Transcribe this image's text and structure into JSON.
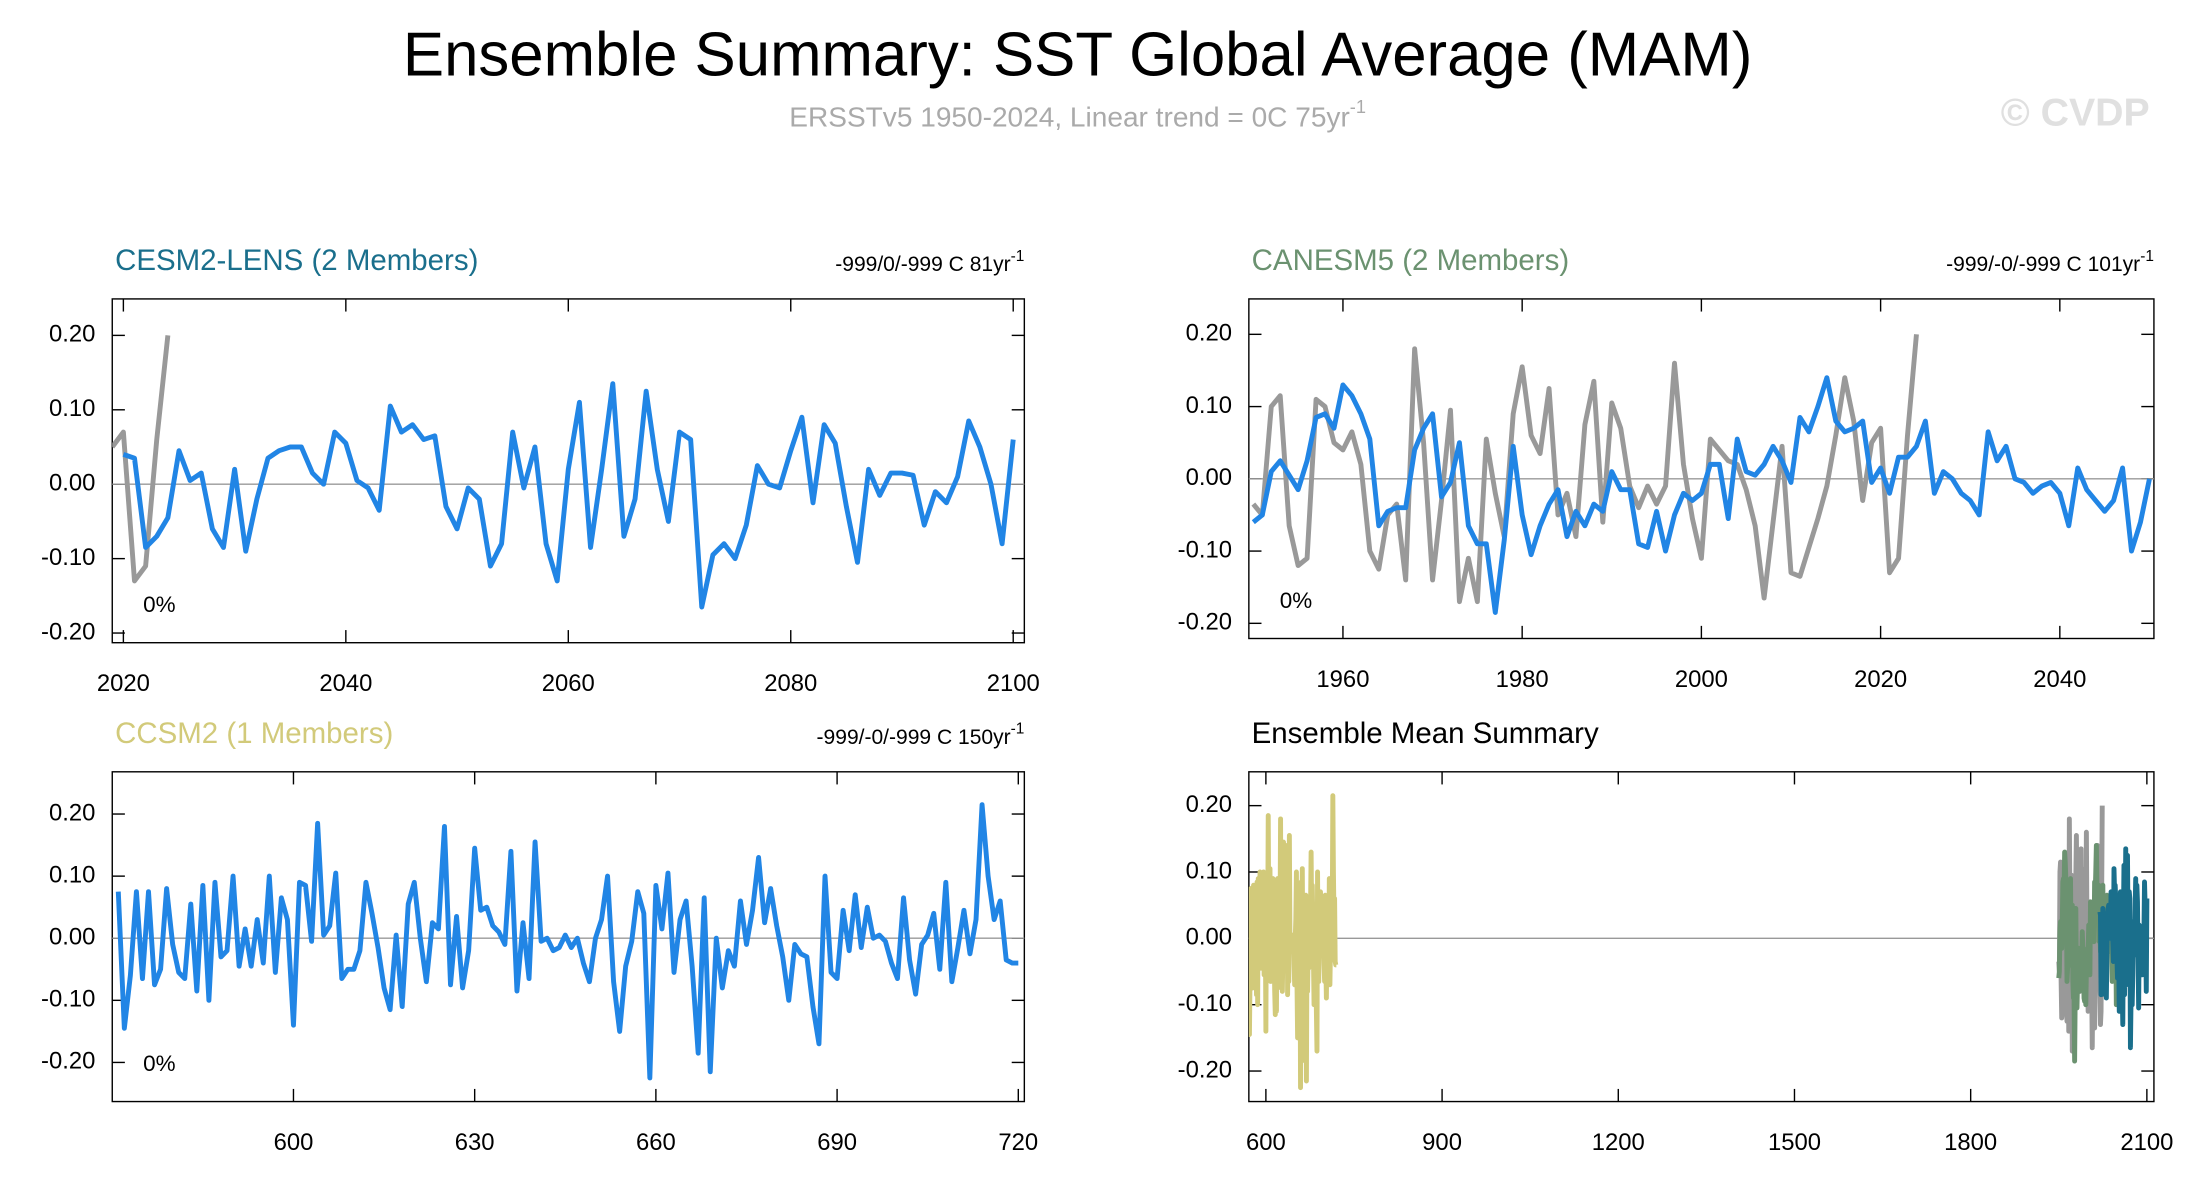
{
  "title": "Ensemble Summary: SST Global Average (MAM)",
  "subtitle": "ERSSTv5 1950-2024, Linear trend = 0C 75yr",
  "subtitle_sup": "-1",
  "watermark": "© CVDP",
  "chart_data": [
    {
      "type": "line",
      "title": "CESM2-LENS (2 Members)",
      "title_color": "#1a6f8c",
      "trend": "-999/0/-999 C 81yr",
      "trend_sup": "-1",
      "percent": "0%",
      "xlim": [
        2019,
        2101
      ],
      "xticks": [
        2020,
        2040,
        2060,
        2080,
        2100
      ],
      "ylim": [
        -0.213,
        0.249
      ],
      "yticks": [
        {
          "value": 0.2,
          "label": "0.20"
        },
        {
          "value": 0.1,
          "label": "0.10"
        },
        {
          "value": 0,
          "label": "0.00"
        },
        {
          "value": -0.1,
          "label": "-0.10"
        },
        {
          "value": -0.2,
          "label": "-0.20"
        }
      ],
      "series": [
        {
          "color": "#999999",
          "x": [
            2019,
            2020,
            2021,
            2022,
            2023,
            2024
          ],
          "values": [
            0.05,
            0.07,
            -0.13,
            -0.11,
            0.06,
            0.2
          ]
        },
        {
          "color": "#2185e5",
          "x": [
            2020,
            2021,
            2022,
            2023,
            2024,
            2025,
            2026,
            2027,
            2028,
            2029,
            2030,
            2031,
            2032,
            2033,
            2034,
            2035,
            2036,
            2037,
            2038,
            2039,
            2040,
            2041,
            2042,
            2043,
            2044,
            2045,
            2046,
            2047,
            2048,
            2049,
            2050,
            2051,
            2052,
            2053,
            2054,
            2055,
            2056,
            2057,
            2058,
            2059,
            2060,
            2061,
            2062,
            2063,
            2064,
            2065,
            2066,
            2067,
            2068,
            2069,
            2070,
            2071,
            2072,
            2073,
            2074,
            2075,
            2076,
            2077,
            2078,
            2079,
            2080,
            2081,
            2082,
            2083,
            2084,
            2085,
            2086,
            2087,
            2088,
            2089,
            2090,
            2091,
            2092,
            2093,
            2094,
            2095,
            2096,
            2097,
            2098,
            2099,
            2100
          ],
          "values": [
            0.04,
            0.035,
            -0.085,
            -0.07,
            -0.045,
            0.045,
            0.005,
            0.015,
            -0.06,
            -0.085,
            0.02,
            -0.09,
            -0.02,
            0.035,
            0.045,
            0.05,
            0.05,
            0.015,
            0.0,
            0.07,
            0.055,
            0.005,
            -0.005,
            -0.035,
            0.105,
            0.07,
            0.08,
            0.06,
            0.065,
            -0.03,
            -0.06,
            -0.005,
            -0.02,
            -0.11,
            -0.08,
            0.07,
            -0.005,
            0.05,
            -0.08,
            -0.13,
            0.02,
            0.11,
            -0.085,
            0.02,
            0.135,
            -0.07,
            -0.02,
            0.125,
            0.02,
            -0.05,
            0.07,
            0.06,
            -0.165,
            -0.095,
            -0.08,
            -0.1,
            -0.055,
            0.025,
            0.0,
            -0.005,
            0.045,
            0.09,
            -0.025,
            0.08,
            0.055,
            -0.03,
            -0.105,
            0.02,
            -0.015,
            0.015,
            0.015,
            0.012,
            -0.055,
            -0.01,
            -0.025,
            0.01,
            0.085,
            0.05,
            0.0,
            -0.08,
            0.06
          ]
        }
      ]
    },
    {
      "type": "line",
      "title": "CANESM5 (2 Members)",
      "title_color": "#6b9270",
      "trend": "-999/-0/-999 C 101yr",
      "trend_sup": "-1",
      "percent": "0%",
      "xlim": [
        1949.5,
        2050.5
      ],
      "xticks": [
        1960,
        1980,
        2000,
        2020,
        2040
      ],
      "ylim": [
        -0.221,
        0.249
      ],
      "yticks": [
        {
          "value": 0.2,
          "label": "0.20"
        },
        {
          "value": 0.1,
          "label": "0.10"
        },
        {
          "value": 0,
          "label": "0.00"
        },
        {
          "value": -0.1,
          "label": "-0.10"
        },
        {
          "value": -0.2,
          "label": "-0.20"
        }
      ],
      "series": [
        {
          "color": "#999999",
          "x": [
            1950,
            1951,
            1952,
            1953,
            1954,
            1955,
            1956,
            1957,
            1958,
            1959,
            1960,
            1961,
            1962,
            1963,
            1964,
            1965,
            1966,
            1967,
            1968,
            1969,
            1970,
            1971,
            1972,
            1973,
            1974,
            1975,
            1976,
            1977,
            1978,
            1979,
            1980,
            1981,
            1982,
            1983,
            1984,
            1985,
            1986,
            1987,
            1988,
            1989,
            1990,
            1991,
            1992,
            1993,
            1994,
            1995,
            1996,
            1997,
            1998,
            1999,
            2000,
            2001,
            2002,
            2003,
            2004,
            2005,
            2006,
            2007,
            2008,
            2009,
            2010,
            2011,
            2012,
            2013,
            2014,
            2015,
            2016,
            2017,
            2018,
            2019,
            2020,
            2021,
            2022,
            2023,
            2024
          ],
          "values": [
            -0.035,
            -0.05,
            0.1,
            0.115,
            -0.065,
            -0.12,
            -0.11,
            0.11,
            0.1,
            0.05,
            0.04,
            0.065,
            0.02,
            -0.1,
            -0.125,
            -0.05,
            -0.035,
            -0.14,
            0.18,
            0.05,
            -0.14,
            -0.03,
            0.095,
            -0.17,
            -0.11,
            -0.17,
            0.055,
            -0.02,
            -0.08,
            0.09,
            0.155,
            0.06,
            0.035,
            0.125,
            -0.05,
            -0.02,
            -0.08,
            0.075,
            0.135,
            -0.06,
            0.105,
            0.07,
            -0.01,
            -0.04,
            -0.01,
            -0.035,
            -0.01,
            0.16,
            0.02,
            -0.055,
            -0.11,
            0.055,
            0.04,
            0.025,
            0.02,
            -0.015,
            -0.065,
            -0.165,
            -0.06,
            0.045,
            -0.13,
            -0.135,
            -0.095,
            -0.055,
            -0.01,
            0.06,
            0.14,
            0.08,
            -0.03,
            0.05,
            0.07,
            -0.13,
            -0.11,
            0.06,
            0.2
          ]
        },
        {
          "color": "#2185e5",
          "x": [
            1950,
            1951,
            1952,
            1953,
            1954,
            1955,
            1956,
            1957,
            1958,
            1959,
            1960,
            1961,
            1962,
            1963,
            1964,
            1965,
            1966,
            1967,
            1968,
            1969,
            1970,
            1971,
            1972,
            1973,
            1974,
            1975,
            1976,
            1977,
            1978,
            1979,
            1980,
            1981,
            1982,
            1983,
            1984,
            1985,
            1986,
            1987,
            1988,
            1989,
            1990,
            1991,
            1992,
            1993,
            1994,
            1995,
            1996,
            1997,
            1998,
            1999,
            2000,
            2001,
            2002,
            2003,
            2004,
            2005,
            2006,
            2007,
            2008,
            2009,
            2010,
            2011,
            2012,
            2013,
            2014,
            2015,
            2016,
            2017,
            2018,
            2019,
            2020,
            2021,
            2022,
            2023,
            2024,
            2025,
            2026,
            2027,
            2028,
            2029,
            2030,
            2031,
            2032,
            2033,
            2034,
            2035,
            2036,
            2037,
            2038,
            2039,
            2040,
            2041,
            2042,
            2043,
            2044,
            2045,
            2046,
            2047,
            2048,
            2049,
            2050
          ],
          "values": [
            -0.06,
            -0.05,
            0.01,
            0.025,
            0.005,
            -0.015,
            0.025,
            0.085,
            0.09,
            0.07,
            0.13,
            0.115,
            0.09,
            0.055,
            -0.065,
            -0.045,
            -0.04,
            -0.04,
            0.04,
            0.07,
            0.09,
            -0.025,
            -0.005,
            0.05,
            -0.065,
            -0.09,
            -0.09,
            -0.185,
            -0.085,
            0.045,
            -0.05,
            -0.105,
            -0.065,
            -0.035,
            -0.015,
            -0.08,
            -0.045,
            -0.065,
            -0.035,
            -0.045,
            0.01,
            -0.015,
            -0.015,
            -0.09,
            -0.095,
            -0.045,
            -0.1,
            -0.05,
            -0.02,
            -0.03,
            -0.02,
            0.02,
            0.02,
            -0.055,
            0.055,
            0.01,
            0.005,
            0.02,
            0.045,
            0.025,
            -0.005,
            0.085,
            0.065,
            0.1,
            0.14,
            0.08,
            0.065,
            0.07,
            0.08,
            -0.005,
            0.015,
            -0.02,
            0.03,
            0.03,
            0.045,
            0.08,
            -0.02,
            0.01,
            0.0,
            -0.02,
            -0.03,
            -0.05,
            0.065,
            0.025,
            0.045,
            0.0,
            -0.005,
            -0.02,
            -0.01,
            -0.005,
            -0.02,
            -0.065,
            0.015,
            -0.015,
            -0.03,
            -0.045,
            -0.03,
            0.015,
            -0.1,
            -0.06,
            0.0
          ]
        }
      ]
    },
    {
      "type": "line",
      "title": "CCSM2 (1 Members)",
      "title_color": "#d2ca7a",
      "trend": "-999/-0/-999 C 150yr",
      "trend_sup": "-1",
      "percent": "0%",
      "xlim": [
        570,
        721
      ],
      "xticks": [
        600,
        630,
        660,
        690,
        720
      ],
      "ylim": [
        -0.263,
        0.268
      ],
      "yticks": [
        {
          "value": 0.2,
          "label": "0.20"
        },
        {
          "value": 0.1,
          "label": "0.10"
        },
        {
          "value": 0,
          "label": "0.00"
        },
        {
          "value": -0.1,
          "label": "-0.10"
        },
        {
          "value": -0.2,
          "label": "-0.20"
        }
      ],
      "series": [
        {
          "color": "#2185e5",
          "x": [
            571,
            572,
            573,
            574,
            575,
            576,
            577,
            578,
            579,
            580,
            581,
            582,
            583,
            584,
            585,
            586,
            587,
            588,
            589,
            590,
            591,
            592,
            593,
            594,
            595,
            596,
            597,
            598,
            599,
            600,
            601,
            602,
            603,
            604,
            605,
            606,
            607,
            608,
            609,
            610,
            611,
            612,
            613,
            614,
            615,
            616,
            617,
            618,
            619,
            620,
            621,
            622,
            623,
            624,
            625,
            626,
            627,
            628,
            629,
            630,
            631,
            632,
            633,
            634,
            635,
            636,
            637,
            638,
            639,
            640,
            641,
            642,
            643,
            644,
            645,
            646,
            647,
            648,
            649,
            650,
            651,
            652,
            653,
            654,
            655,
            656,
            657,
            658,
            659,
            660,
            661,
            662,
            663,
            664,
            665,
            666,
            667,
            668,
            669,
            670,
            671,
            672,
            673,
            674,
            675,
            676,
            677,
            678,
            679,
            680,
            681,
            682,
            683,
            684,
            685,
            686,
            687,
            688,
            689,
            690,
            691,
            692,
            693,
            694,
            695,
            696,
            697,
            698,
            699,
            700,
            701,
            702,
            703,
            704,
            705,
            706,
            707,
            708,
            709,
            710,
            711,
            712,
            713,
            714,
            715,
            716,
            717,
            718,
            719,
            720
          ],
          "values": [
            0.075,
            -0.145,
            -0.06,
            0.075,
            -0.065,
            0.075,
            -0.075,
            -0.05,
            0.08,
            -0.01,
            -0.055,
            -0.065,
            0.055,
            -0.085,
            0.085,
            -0.1,
            0.09,
            -0.03,
            -0.02,
            0.1,
            -0.045,
            0.015,
            -0.045,
            0.03,
            -0.04,
            0.1,
            -0.055,
            0.065,
            0.03,
            -0.14,
            0.09,
            0.085,
            -0.005,
            0.185,
            0.005,
            0.02,
            0.105,
            -0.065,
            -0.05,
            -0.05,
            -0.02,
            0.09,
            0.04,
            -0.015,
            -0.08,
            -0.115,
            0.005,
            -0.11,
            0.055,
            0.09,
            0.0,
            -0.07,
            0.025,
            0.015,
            0.18,
            -0.075,
            0.035,
            -0.08,
            -0.02,
            0.145,
            0.045,
            0.05,
            0.02,
            0.01,
            -0.01,
            0.14,
            -0.085,
            0.025,
            -0.065,
            0.155,
            -0.005,
            0.0,
            -0.02,
            -0.015,
            0.005,
            -0.015,
            0.0,
            -0.04,
            -0.07,
            0.0,
            0.03,
            0.1,
            -0.07,
            -0.15,
            -0.045,
            -0.005,
            0.075,
            0.04,
            -0.225,
            0.085,
            0.015,
            0.105,
            -0.055,
            0.03,
            0.06,
            -0.045,
            -0.185,
            0.065,
            -0.215,
            0.0,
            -0.08,
            -0.02,
            -0.045,
            0.06,
            -0.01,
            0.045,
            0.13,
            0.025,
            0.08,
            0.02,
            -0.03,
            -0.1,
            -0.01,
            -0.025,
            -0.03,
            -0.11,
            -0.17,
            0.1,
            -0.055,
            -0.065,
            0.045,
            -0.02,
            0.07,
            -0.015,
            0.05,
            0.0,
            0.005,
            -0.005,
            -0.04,
            -0.065,
            0.065,
            -0.035,
            -0.09,
            -0.01,
            0.005,
            0.04,
            -0.05,
            0.09,
            -0.07,
            -0.015,
            0.045,
            -0.025,
            0.03,
            0.215,
            0.1,
            0.03,
            0.06,
            -0.035,
            -0.04,
            -0.04
          ]
        }
      ]
    },
    {
      "type": "summary",
      "title": "Ensemble Mean Summary",
      "xlim": [
        571,
        2112
      ],
      "xticks": [
        600,
        900,
        1200,
        1500,
        1800,
        2100
      ],
      "ylim": [
        -0.246,
        0.251
      ],
      "yticks": [
        {
          "value": 0.2,
          "label": "0.20"
        },
        {
          "value": 0.1,
          "label": "0.10"
        },
        {
          "value": 0,
          "label": "0.00"
        },
        {
          "value": -0.1,
          "label": "-0.10"
        },
        {
          "value": -0.2,
          "label": "-0.20"
        }
      ]
    }
  ]
}
